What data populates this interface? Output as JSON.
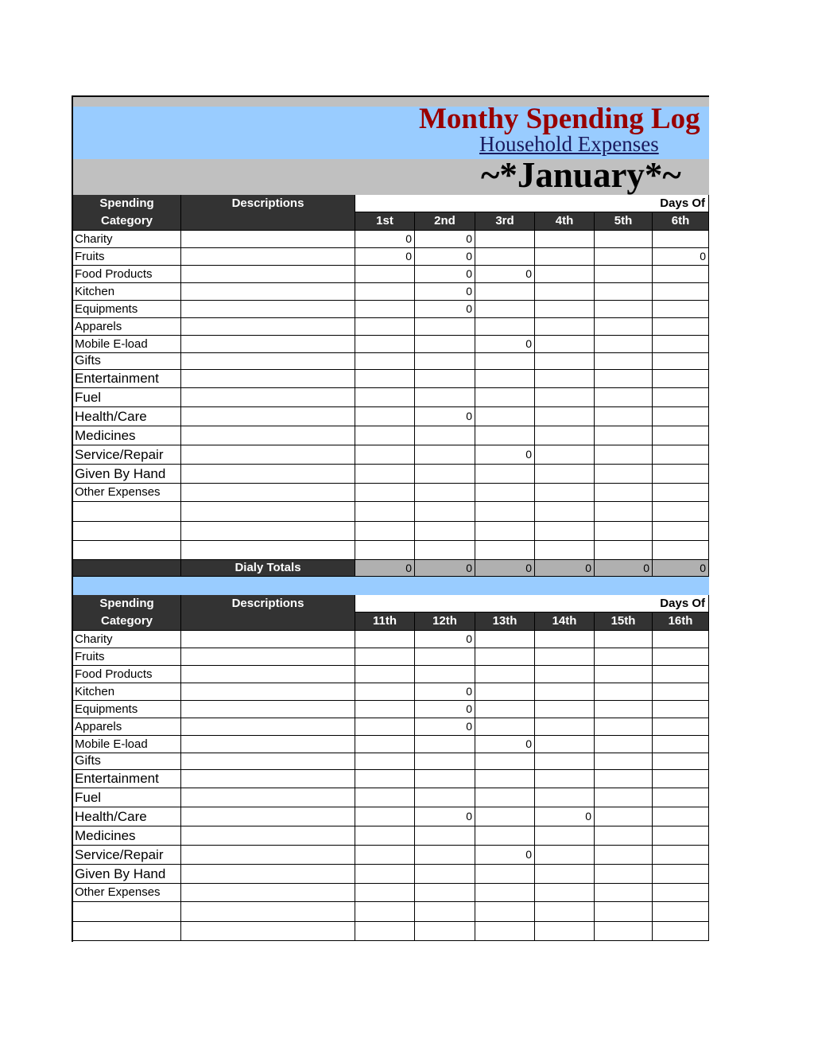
{
  "header": {
    "title": "Monthy Spending Log",
    "subtitle": "Household Expenses",
    "month": "~*January*~"
  },
  "sections": [
    {
      "header": {
        "category_line1": "Spending",
        "category_line2": "Category",
        "descriptions": "Descriptions",
        "days_of": "Days Of",
        "days": [
          "1st",
          "2nd",
          "3rd",
          "4th",
          "5th",
          "6th"
        ]
      },
      "rows": [
        {
          "category": "Charity",
          "values": [
            0,
            0,
            null,
            null,
            null,
            null
          ]
        },
        {
          "category": "Fruits",
          "values": [
            0,
            0,
            null,
            null,
            null,
            0
          ]
        },
        {
          "category": "Food Products",
          "values": [
            null,
            0,
            0,
            null,
            null,
            null
          ]
        },
        {
          "category": "Kitchen",
          "values": [
            null,
            0,
            null,
            null,
            null,
            null
          ]
        },
        {
          "category": "Equipments",
          "values": [
            null,
            0,
            null,
            null,
            null,
            null
          ]
        },
        {
          "category": "Apparels",
          "values": [
            null,
            null,
            null,
            null,
            null,
            null
          ]
        },
        {
          "category": "Mobile E-load",
          "values": [
            null,
            null,
            0,
            null,
            null,
            null
          ]
        },
        {
          "category": "Gifts",
          "values": [
            null,
            null,
            null,
            null,
            null,
            null
          ]
        },
        {
          "category": "Entertainment",
          "values": [
            null,
            null,
            null,
            null,
            null,
            null
          ]
        },
        {
          "category": "Fuel",
          "values": [
            null,
            null,
            null,
            null,
            null,
            null
          ]
        },
        {
          "category": "Health/Care",
          "values": [
            null,
            0,
            null,
            null,
            null,
            null
          ]
        },
        {
          "category": "Medicines",
          "values": [
            null,
            null,
            null,
            null,
            null,
            null
          ]
        },
        {
          "category": "Service/Repair",
          "values": [
            null,
            null,
            0,
            null,
            null,
            null
          ]
        },
        {
          "category": "Given By Hand",
          "values": [
            null,
            null,
            null,
            null,
            null,
            null
          ]
        },
        {
          "category": "Other Expenses",
          "values": [
            null,
            null,
            null,
            null,
            null,
            null
          ]
        },
        {
          "category": null,
          "values": [
            null,
            null,
            null,
            null,
            null,
            null
          ]
        },
        {
          "category": null,
          "values": [
            null,
            null,
            null,
            null,
            null,
            null
          ]
        },
        {
          "category": null,
          "values": [
            null,
            null,
            null,
            null,
            null,
            null
          ]
        }
      ],
      "totals": {
        "label": "Dialy Totals",
        "values": [
          0,
          0,
          0,
          0,
          0,
          0
        ]
      }
    },
    {
      "header": {
        "category_line1": "Spending",
        "category_line2": "Category",
        "descriptions": "Descriptions",
        "days_of": "Days Of",
        "days": [
          "11th",
          "12th",
          "13th",
          "14th",
          "15th",
          "16th"
        ]
      },
      "rows": [
        {
          "category": "Charity",
          "values": [
            null,
            0,
            null,
            null,
            null,
            null
          ]
        },
        {
          "category": "Fruits",
          "values": [
            null,
            null,
            null,
            null,
            null,
            null
          ]
        },
        {
          "category": "Food Products",
          "values": [
            null,
            null,
            null,
            null,
            null,
            null
          ]
        },
        {
          "category": "Kitchen",
          "values": [
            null,
            0,
            null,
            null,
            null,
            null
          ]
        },
        {
          "category": "Equipments",
          "values": [
            null,
            0,
            null,
            null,
            null,
            null
          ]
        },
        {
          "category": "Apparels",
          "values": [
            null,
            0,
            null,
            null,
            null,
            null
          ]
        },
        {
          "category": "Mobile E-load",
          "values": [
            null,
            null,
            0,
            null,
            null,
            null
          ]
        },
        {
          "category": "Gifts",
          "values": [
            null,
            null,
            null,
            null,
            null,
            null
          ]
        },
        {
          "category": "Entertainment",
          "values": [
            null,
            null,
            null,
            null,
            null,
            null
          ]
        },
        {
          "category": "Fuel",
          "values": [
            null,
            null,
            null,
            null,
            null,
            null
          ]
        },
        {
          "category": "Health/Care",
          "values": [
            null,
            0,
            null,
            0,
            null,
            null
          ]
        },
        {
          "category": "Medicines",
          "values": [
            null,
            null,
            null,
            null,
            null,
            null
          ]
        },
        {
          "category": "Service/Repair",
          "values": [
            null,
            null,
            0,
            null,
            null,
            null
          ]
        },
        {
          "category": "Given By Hand",
          "values": [
            null,
            null,
            null,
            null,
            null,
            null
          ]
        },
        {
          "category": "Other Expenses",
          "values": [
            null,
            null,
            null,
            null,
            null,
            null
          ]
        },
        {
          "category": null,
          "values": [
            null,
            null,
            null,
            null,
            null,
            null
          ]
        },
        {
          "category": null,
          "values": [
            null,
            null,
            null,
            null,
            null,
            null
          ]
        }
      ]
    }
  ]
}
